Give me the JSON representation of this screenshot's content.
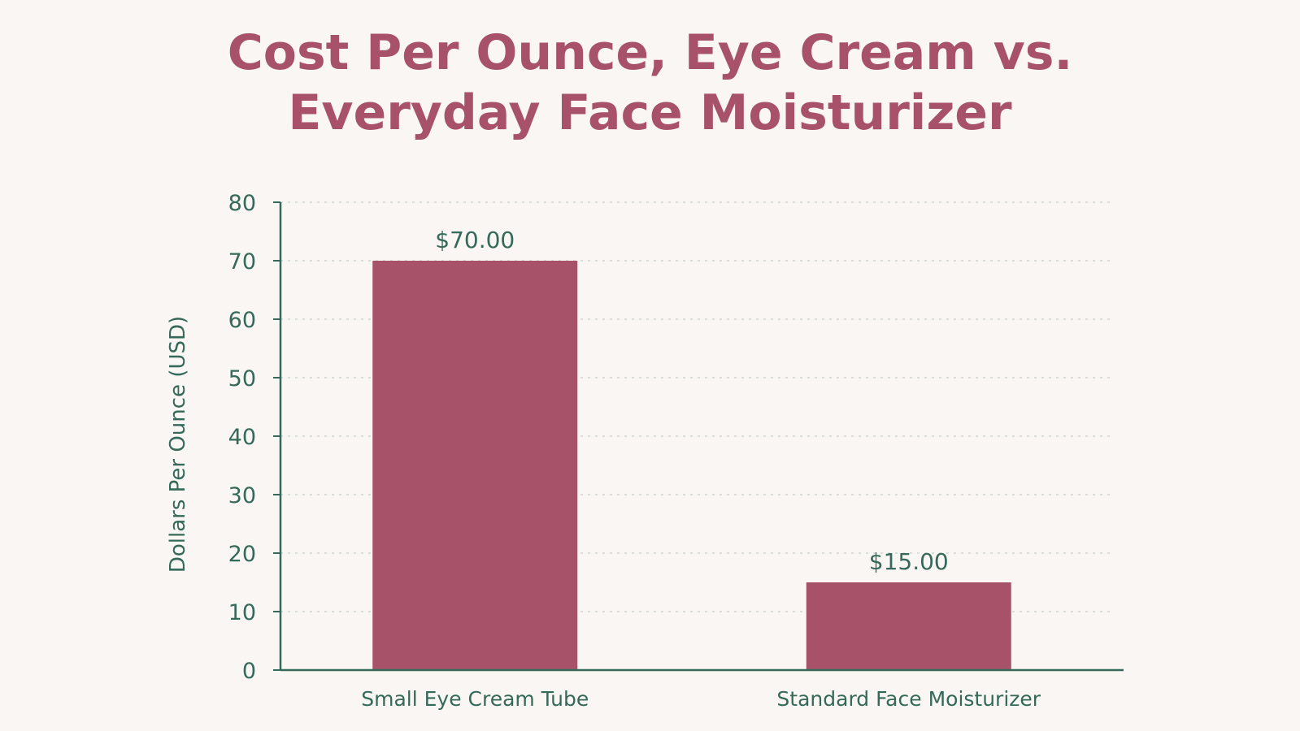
{
  "chart_data": {
    "type": "bar",
    "title_lines": [
      "Cost Per Ounce, Eye Cream vs.",
      "Everyday Face Moisturizer"
    ],
    "xlabel": "",
    "ylabel": "Dollars Per Ounce (USD)",
    "categories": [
      "Small Eye Cream Tube",
      "Standard Face Moisturizer"
    ],
    "values": [
      70,
      15
    ],
    "data_labels": [
      "$70.00",
      "$15.00"
    ],
    "ylim": [
      0,
      80
    ],
    "yticks": [
      0,
      10,
      20,
      30,
      40,
      50,
      60,
      70,
      80
    ],
    "grid": true,
    "legend": "none",
    "bar_color": "#a8526a",
    "axis_color": "#35695a",
    "title_color": "#a8516a",
    "background": "#faf6f3"
  }
}
